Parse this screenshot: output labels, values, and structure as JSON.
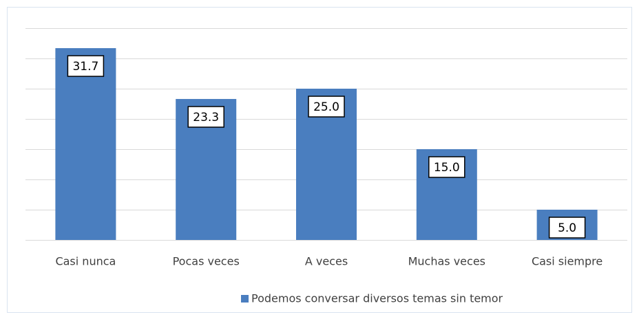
{
  "chart_data": {
    "type": "bar",
    "categories": [
      "Casi nunca",
      "Pocas veces",
      "A veces",
      "Muchas veces",
      "Casi siempre"
    ],
    "values": [
      31.7,
      23.3,
      25,
      15,
      5
    ],
    "value_labels": [
      "31.7",
      "23.3",
      "25.0",
      "15.0",
      "5.0"
    ],
    "color": "#4a7ebf",
    "ylim": [
      0,
      35
    ],
    "yticks": [
      0,
      5,
      10,
      15,
      20,
      25,
      30,
      35
    ],
    "grid": true,
    "legend": {
      "position": "bottom",
      "label": "Podemos conversar diversos temas sin temor"
    }
  }
}
